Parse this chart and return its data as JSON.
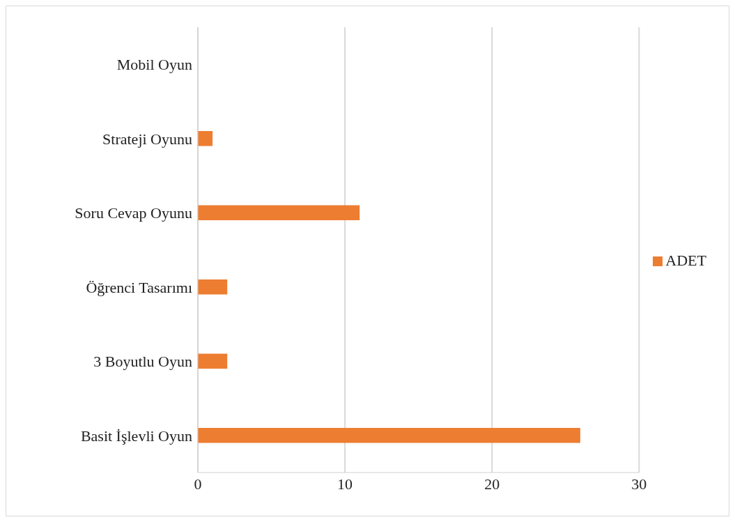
{
  "chart_data": {
    "type": "bar",
    "orientation": "horizontal",
    "categories": [
      "Mobil Oyun",
      "Strateji Oyunu",
      "Soru Cevap Oyunu",
      "Öğrenci Tasarımı",
      "3 Boyutlu Oyun",
      "Basit İşlevli Oyun"
    ],
    "series": [
      {
        "name": "ADET",
        "color": "#ed7d31",
        "values": [
          0,
          1,
          11,
          2,
          2,
          26
        ]
      }
    ],
    "xlim": [
      0,
      30
    ],
    "xticks": [
      0,
      10,
      20,
      30
    ],
    "grid": "x",
    "legend": "right"
  }
}
